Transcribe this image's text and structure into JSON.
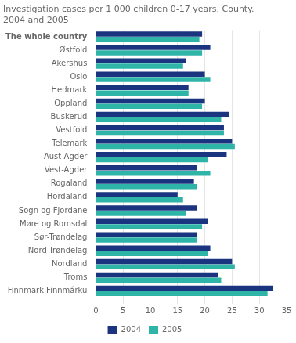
{
  "chart_data": {
    "type": "bar",
    "orientation": "horizontal",
    "title": "Investigation cases per 1 000 children 0-17 years. County.\n2004 and 2005",
    "categories": [
      "The whole country",
      "Østfold",
      "Akershus",
      "Oslo",
      "Hedmark",
      "Oppland",
      "Buskerud",
      "Vestfold",
      "Telemark",
      "Aust-Agder",
      "Vest-Agder",
      "Rogaland",
      "Hordaland",
      "Sogn og Fjordane",
      "Møre og Romsdal",
      "Sør-Trøndelag",
      "Nord-Trøndelag",
      "Nordland",
      "Troms",
      "Finnmark Finnmárku"
    ],
    "series": [
      {
        "name": "2004",
        "color": "#1a3480",
        "values": [
          19.5,
          21.0,
          16.5,
          20.0,
          17.0,
          20.0,
          24.5,
          23.5,
          25.0,
          24.0,
          18.5,
          18.0,
          15.0,
          18.5,
          20.5,
          18.5,
          21.0,
          25.0,
          22.5,
          32.5
        ]
      },
      {
        "name": "2005",
        "color": "#2eb5a8",
        "values": [
          19.0,
          19.5,
          16.0,
          21.0,
          17.0,
          19.5,
          23.0,
          23.5,
          25.5,
          20.5,
          21.0,
          18.5,
          16.0,
          16.5,
          19.5,
          18.5,
          20.5,
          25.5,
          23.0,
          31.5
        ]
      }
    ],
    "xlim": [
      0,
      35
    ],
    "xticks": [
      0,
      5,
      10,
      15,
      20,
      25,
      30,
      35
    ],
    "grid": true,
    "legend": "bottom"
  }
}
